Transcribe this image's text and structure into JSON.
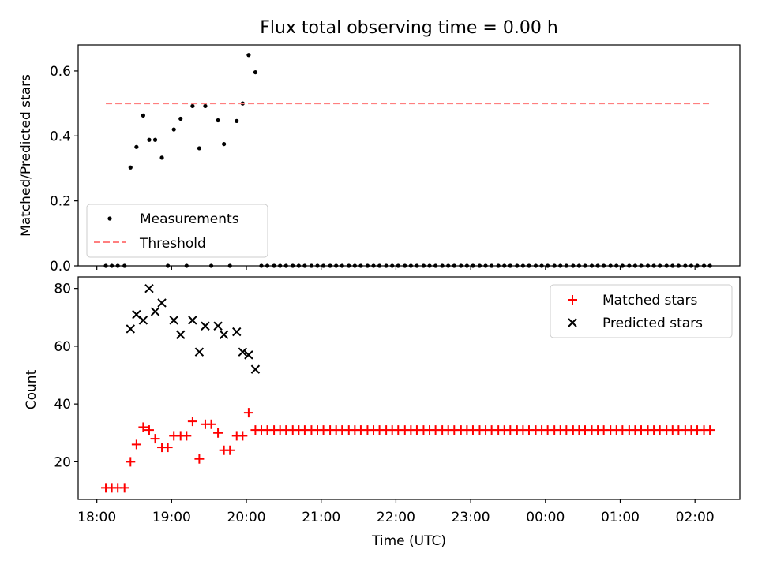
{
  "figure": {
    "title": "Flux total observing time = 0.00 h"
  },
  "chart_data": [
    {
      "type": "scatter",
      "ylabel": "Matched/Predicted stars",
      "xlabel": "",
      "ylim": [
        0,
        0.68
      ],
      "yticks": [
        0.0,
        0.2,
        0.4,
        0.6
      ],
      "ytick_labels": [
        "0.0",
        "0.2",
        "0.4",
        "0.6"
      ],
      "legend": {
        "placement": "lower-left"
      },
      "series": [
        {
          "name": "Measurements",
          "kind": "scatter",
          "color": "#000000",
          "x": [
            18.12,
            18.2,
            18.28,
            18.37,
            18.45,
            18.53,
            18.62,
            18.7,
            18.78,
            18.87,
            18.95,
            19.03,
            19.12,
            19.2,
            19.28,
            19.37,
            19.45,
            19.53,
            19.62,
            19.7,
            19.78,
            19.87,
            19.95,
            20.03,
            20.12,
            20.2,
            20.28,
            20.37,
            20.45,
            20.53,
            20.62,
            20.7,
            20.78,
            20.87,
            20.95,
            21.03,
            21.12,
            21.2,
            21.28,
            21.37,
            21.45,
            21.53,
            21.62,
            21.7,
            21.78,
            21.87,
            21.95,
            22.03,
            22.12,
            22.2,
            22.28,
            22.37,
            22.45,
            22.53,
            22.62,
            22.7,
            22.78,
            22.87,
            22.95,
            23.03,
            23.12,
            23.2,
            23.28,
            23.37,
            23.45,
            23.53,
            23.62,
            23.7,
            23.78,
            23.87,
            23.95,
            24.03,
            24.12,
            24.2,
            24.28,
            24.37,
            24.45,
            24.53,
            24.62,
            24.7,
            24.78,
            24.87,
            24.95,
            25.03,
            25.12,
            25.2,
            25.28,
            25.37,
            25.45,
            25.53,
            25.62,
            25.7,
            25.78,
            25.87,
            25.95,
            26.03,
            26.12,
            26.2
          ],
          "y": [
            0,
            0,
            0,
            0,
            0.303,
            0.366,
            0.463,
            0.388,
            0.388,
            0.333,
            0,
            0.42,
            0.453,
            0,
            0.492,
            0.362,
            0.492,
            0,
            0.448,
            0.375,
            0,
            0.446,
            0.5,
            0.649,
            0.596,
            0,
            0,
            0,
            0,
            0,
            0,
            0,
            0,
            0,
            0,
            0,
            0,
            0,
            0,
            0,
            0,
            0,
            0,
            0,
            0,
            0,
            0,
            0,
            0,
            0,
            0,
            0,
            0,
            0,
            0,
            0,
            0,
            0,
            0,
            0,
            0,
            0,
            0,
            0,
            0,
            0,
            0,
            0,
            0,
            0,
            0,
            0,
            0,
            0,
            0,
            0,
            0,
            0,
            0,
            0,
            0,
            0,
            0,
            0,
            0,
            0,
            0,
            0,
            0,
            0,
            0,
            0,
            0,
            0,
            0,
            0,
            0,
            0
          ]
        },
        {
          "name": "Threshold",
          "kind": "line",
          "dash": true,
          "color": "#ff7f7f",
          "x": [
            18.12,
            26.2
          ],
          "y": [
            0.5,
            0.5
          ]
        }
      ]
    },
    {
      "type": "scatter",
      "ylabel": "Count",
      "xlabel": "Time (UTC)",
      "ylim": [
        7,
        84
      ],
      "xlim": [
        17.75,
        26.6
      ],
      "yticks": [
        20,
        40,
        60,
        80
      ],
      "ytick_labels": [
        "20",
        "40",
        "60",
        "80"
      ],
      "xticks": [
        18,
        19,
        20,
        21,
        22,
        23,
        24,
        25,
        26
      ],
      "xtick_labels": [
        "18:00",
        "19:00",
        "20:00",
        "21:00",
        "22:00",
        "23:00",
        "00:00",
        "01:00",
        "02:00"
      ],
      "legend": {
        "placement": "upper-right"
      },
      "series": [
        {
          "name": "Matched stars",
          "kind": "plus",
          "color": "#ff0000",
          "x": [
            18.12,
            18.2,
            18.28,
            18.37,
            18.45,
            18.53,
            18.62,
            18.7,
            18.78,
            18.87,
            18.95,
            19.03,
            19.12,
            19.2,
            19.28,
            19.37,
            19.45,
            19.53,
            19.62,
            19.7,
            19.78,
            19.87,
            19.95,
            20.03,
            20.12,
            20.2,
            20.28,
            20.37,
            20.45,
            20.53,
            20.62,
            20.7,
            20.78,
            20.87,
            20.95,
            21.03,
            21.12,
            21.2,
            21.28,
            21.37,
            21.45,
            21.53,
            21.62,
            21.7,
            21.78,
            21.87,
            21.95,
            22.03,
            22.12,
            22.2,
            22.28,
            22.37,
            22.45,
            22.53,
            22.62,
            22.7,
            22.78,
            22.87,
            22.95,
            23.03,
            23.12,
            23.2,
            23.28,
            23.37,
            23.45,
            23.53,
            23.62,
            23.7,
            23.78,
            23.87,
            23.95,
            24.03,
            24.12,
            24.2,
            24.28,
            24.37,
            24.45,
            24.53,
            24.62,
            24.7,
            24.78,
            24.87,
            24.95,
            25.03,
            25.12,
            25.2,
            25.28,
            25.37,
            25.45,
            25.53,
            25.62,
            25.7,
            25.78,
            25.87,
            25.95,
            26.03,
            26.12,
            26.2
          ],
          "y": [
            11,
            11,
            11,
            11,
            20,
            26,
            32,
            31,
            28,
            25,
            25,
            29,
            29,
            29,
            34,
            21,
            33,
            33,
            30,
            24,
            24,
            29,
            29,
            37,
            31,
            31,
            31,
            31,
            31,
            31,
            31,
            31,
            31,
            31,
            31,
            31,
            31,
            31,
            31,
            31,
            31,
            31,
            31,
            31,
            31,
            31,
            31,
            31,
            31,
            31,
            31,
            31,
            31,
            31,
            31,
            31,
            31,
            31,
            31,
            31,
            31,
            31,
            31,
            31,
            31,
            31,
            31,
            31,
            31,
            31,
            31,
            31,
            31,
            31,
            31,
            31,
            31,
            31,
            31,
            31,
            31,
            31,
            31,
            31,
            31,
            31,
            31,
            31,
            31,
            31,
            31,
            31,
            31,
            31,
            31,
            31,
            31,
            31
          ]
        },
        {
          "name": "Predicted stars",
          "kind": "x",
          "color": "#000000",
          "x": [
            18.45,
            18.53,
            18.62,
            18.7,
            18.78,
            18.87,
            19.03,
            19.12,
            19.28,
            19.37,
            19.45,
            19.62,
            19.7,
            19.87,
            19.95,
            20.03,
            20.12
          ],
          "y": [
            66,
            71,
            69,
            80,
            72,
            75,
            69,
            64,
            69,
            58,
            67,
            67,
            64,
            65,
            58,
            57,
            52
          ]
        }
      ]
    }
  ]
}
